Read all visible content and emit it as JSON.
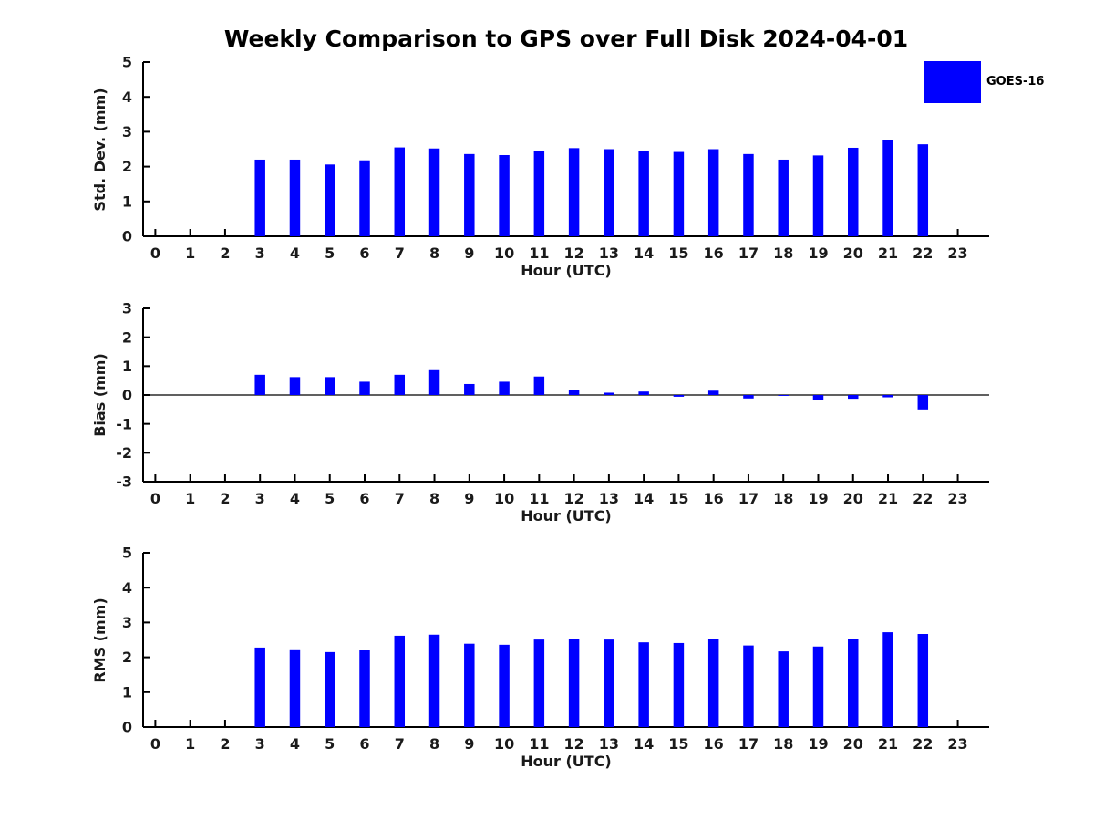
{
  "figure": {
    "title": "Weekly Comparison to GPS over Full Disk 2024-04-01",
    "background": "#ffffff"
  },
  "legend": {
    "label": "GOES-16",
    "swatch_color": "#0000ff",
    "position": "top-right"
  },
  "chart_data": [
    {
      "type": "bar",
      "id": "std-dev",
      "ylabel": "Std. Dev. (mm)",
      "xlabel": "Hour (UTC)",
      "ylim": [
        0,
        5
      ],
      "yticks": [
        0,
        1,
        2,
        3,
        4,
        5
      ],
      "series_name": "GOES-16",
      "bar_color": "#0000ff",
      "categories": [
        0,
        1,
        2,
        3,
        4,
        5,
        6,
        7,
        8,
        9,
        10,
        11,
        12,
        13,
        14,
        15,
        16,
        17,
        18,
        19,
        20,
        21,
        22,
        23
      ],
      "values": [
        null,
        null,
        null,
        2.2,
        2.2,
        2.06,
        2.18,
        2.55,
        2.52,
        2.36,
        2.33,
        2.46,
        2.53,
        2.5,
        2.44,
        2.42,
        2.5,
        2.36,
        2.2,
        2.32,
        2.54,
        2.75,
        2.64,
        null
      ],
      "zero_line": false,
      "grid": false
    },
    {
      "type": "bar",
      "id": "bias",
      "ylabel": "Bias (mm)",
      "xlabel": "Hour (UTC)",
      "ylim": [
        -3,
        3
      ],
      "yticks": [
        -3,
        -2,
        -1,
        0,
        1,
        2,
        3
      ],
      "series_name": "GOES-16",
      "bar_color": "#0000ff",
      "categories": [
        0,
        1,
        2,
        3,
        4,
        5,
        6,
        7,
        8,
        9,
        10,
        11,
        12,
        13,
        14,
        15,
        16,
        17,
        18,
        19,
        20,
        21,
        22,
        23
      ],
      "values": [
        null,
        null,
        null,
        0.7,
        0.62,
        0.62,
        0.46,
        0.7,
        0.86,
        0.38,
        0.46,
        0.64,
        0.18,
        0.08,
        0.12,
        -0.06,
        0.15,
        -0.12,
        -0.03,
        -0.17,
        -0.13,
        -0.08,
        -0.5,
        null
      ],
      "zero_line": true,
      "grid": false
    },
    {
      "type": "bar",
      "id": "rms",
      "ylabel": "RMS (mm)",
      "xlabel": "Hour (UTC)",
      "ylim": [
        0,
        5
      ],
      "yticks": [
        0,
        1,
        2,
        3,
        4,
        5
      ],
      "series_name": "GOES-16",
      "bar_color": "#0000ff",
      "categories": [
        0,
        1,
        2,
        3,
        4,
        5,
        6,
        7,
        8,
        9,
        10,
        11,
        12,
        13,
        14,
        15,
        16,
        17,
        18,
        19,
        20,
        21,
        22,
        23
      ],
      "values": [
        null,
        null,
        null,
        2.28,
        2.23,
        2.15,
        2.2,
        2.62,
        2.65,
        2.39,
        2.36,
        2.51,
        2.52,
        2.51,
        2.43,
        2.41,
        2.52,
        2.34,
        2.17,
        2.31,
        2.52,
        2.72,
        2.67,
        null
      ],
      "zero_line": false,
      "grid": false
    }
  ]
}
